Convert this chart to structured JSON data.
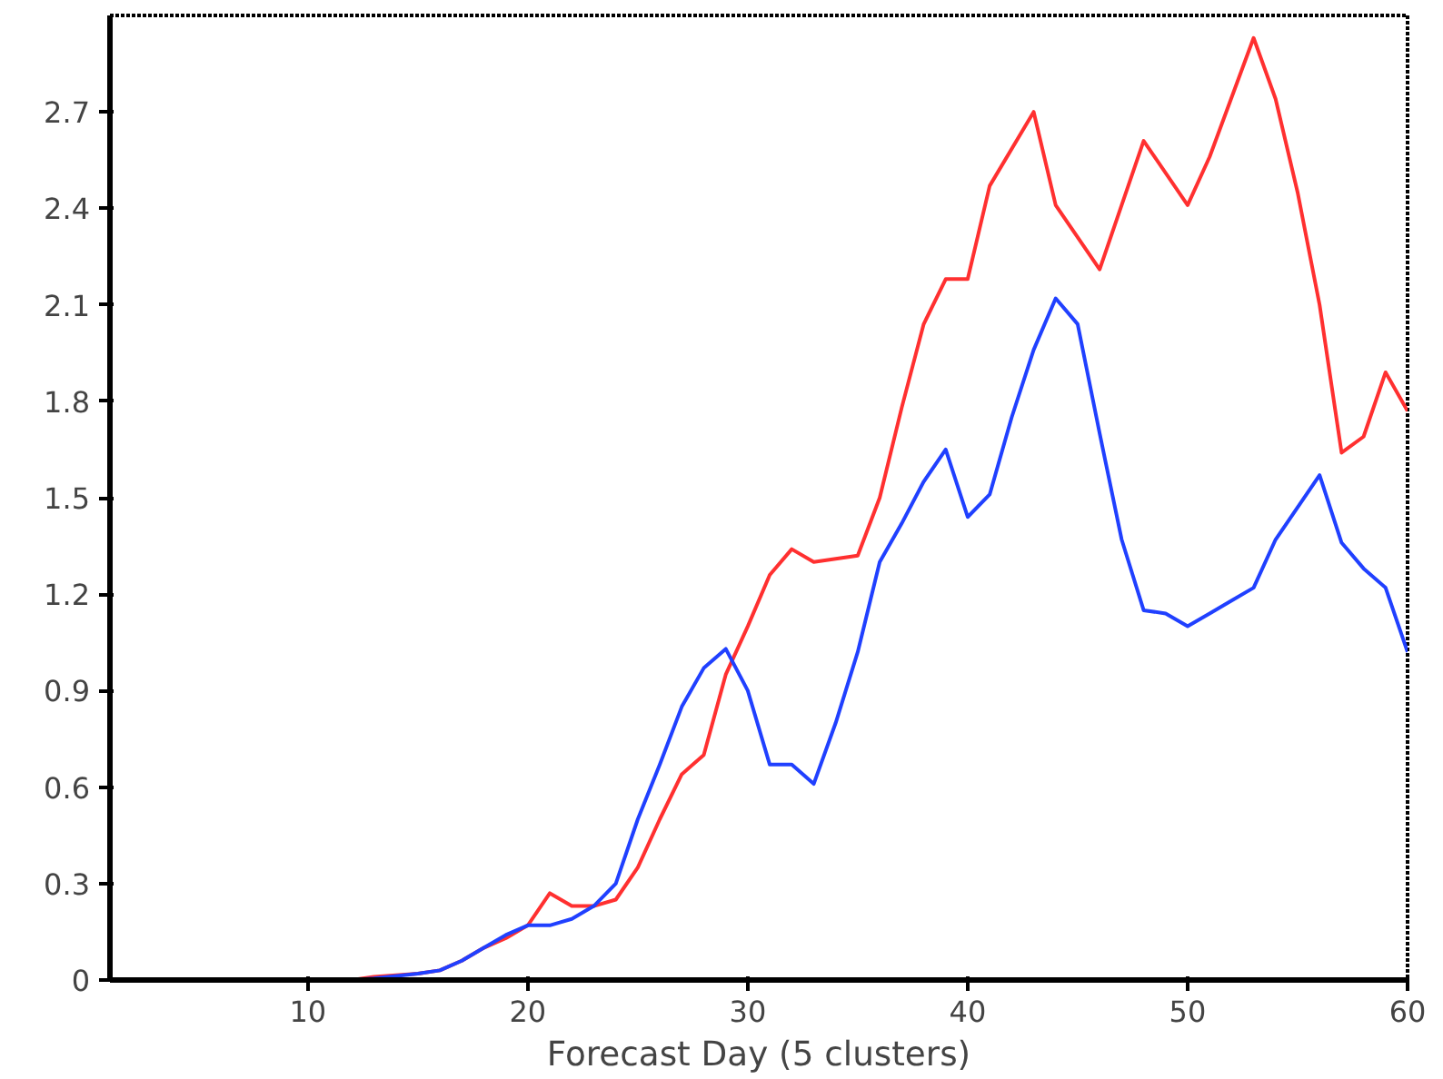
{
  "chart_data": {
    "type": "line",
    "xlabel": "Forecast Day (5 clusters)",
    "xlim": [
      1,
      60
    ],
    "ylim": [
      0,
      3
    ],
    "xticks": [
      10,
      20,
      30,
      40,
      50,
      60
    ],
    "yticks": [
      0,
      0.3,
      0.6,
      0.9,
      1.2,
      1.5,
      1.8,
      2.1,
      2.4,
      2.7
    ],
    "grid": false,
    "marker": "none",
    "line_style": "solid",
    "series": [
      {
        "color": "#ff3030",
        "x": [
          1,
          12,
          13,
          15,
          16,
          17,
          18,
          19,
          20,
          21,
          22,
          23,
          24,
          25,
          26,
          27,
          28,
          29,
          30,
          31,
          32,
          33,
          35,
          36,
          37,
          38,
          39,
          40,
          41,
          43,
          44,
          46,
          48,
          50,
          51,
          53,
          54,
          55,
          56,
          57,
          58,
          59,
          60
        ],
        "values": [
          0,
          0,
          0.01,
          0.02,
          0.03,
          0.06,
          0.1,
          0.13,
          0.17,
          0.27,
          0.23,
          0.23,
          0.25,
          0.35,
          0.5,
          0.64,
          0.7,
          0.95,
          1.1,
          1.26,
          1.34,
          1.3,
          1.32,
          1.5,
          1.78,
          2.04,
          2.18,
          2.18,
          2.47,
          2.7,
          2.41,
          2.21,
          2.61,
          2.41,
          2.56,
          2.93,
          2.74,
          2.45,
          2.1,
          1.64,
          1.69,
          1.89,
          1.77
        ]
      },
      {
        "color": "#2040ff",
        "x": [
          1,
          12,
          13,
          15,
          16,
          17,
          18,
          19,
          20,
          21,
          22,
          23,
          24,
          25,
          26,
          27,
          28,
          29,
          30,
          31,
          32,
          33,
          34,
          35,
          36,
          37,
          38,
          39,
          40,
          41,
          42,
          43,
          44,
          45,
          46,
          47,
          48,
          49,
          50,
          51,
          52,
          53,
          54,
          55,
          56,
          57,
          58,
          59,
          60
        ],
        "values": [
          0,
          0,
          0.005,
          0.02,
          0.03,
          0.06,
          0.1,
          0.14,
          0.17,
          0.17,
          0.19,
          0.23,
          0.3,
          0.5,
          0.67,
          0.85,
          0.97,
          1.03,
          0.9,
          0.67,
          0.67,
          0.61,
          0.8,
          1.02,
          1.3,
          1.42,
          1.55,
          1.65,
          1.44,
          1.51,
          1.75,
          1.96,
          2.12,
          2.04,
          1.7,
          1.37,
          1.15,
          1.14,
          1.1,
          1.14,
          1.18,
          1.22,
          1.37,
          1.47,
          1.57,
          1.36,
          1.28,
          1.22,
          1.02
        ]
      }
    ]
  }
}
